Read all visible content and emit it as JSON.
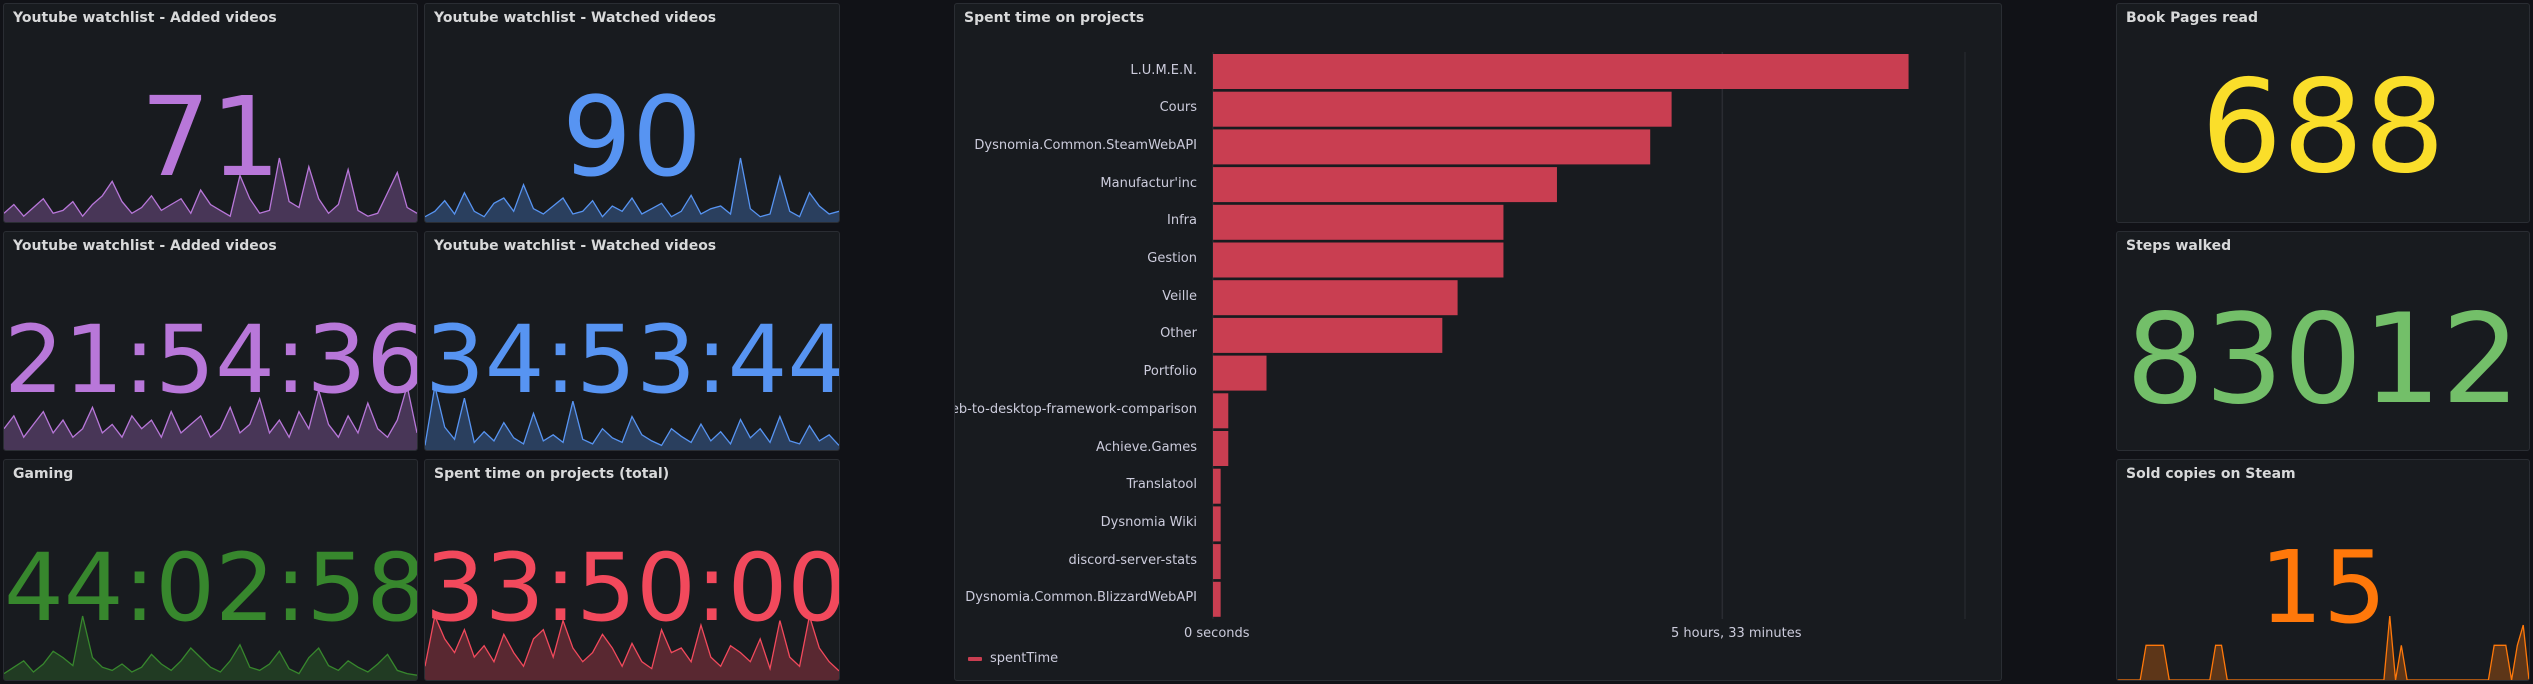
{
  "panels": {
    "yt_added_count": {
      "title": "Youtube watchlist - Added videos",
      "value": "71",
      "color": "#b877d9",
      "spark": [
        3,
        6,
        2,
        5,
        8,
        3,
        4,
        7,
        2,
        6,
        9,
        14,
        7,
        3,
        5,
        9,
        4,
        6,
        8,
        3,
        11,
        6,
        4,
        2,
        16,
        8,
        3,
        4,
        22,
        7,
        5,
        19,
        8,
        3,
        6,
        18,
        4,
        2,
        3,
        10,
        17,
        5,
        3
      ]
    },
    "yt_watched_count": {
      "title": "Youtube watchlist - Watched videos",
      "value": "90",
      "color": "#5794f2",
      "spark": [
        2,
        4,
        8,
        3,
        11,
        4,
        2,
        7,
        9,
        4,
        14,
        5,
        3,
        6,
        9,
        3,
        4,
        8,
        2,
        6,
        4,
        9,
        3,
        5,
        7,
        2,
        4,
        10,
        3,
        5,
        6,
        3,
        24,
        5,
        2,
        3,
        17,
        4,
        2,
        11,
        6,
        3,
        4
      ]
    },
    "yt_added_time": {
      "title": "Youtube watchlist - Added videos",
      "value": "21:54:36",
      "color": "#b877d9",
      "spark": [
        5,
        8,
        3,
        6,
        9,
        4,
        7,
        3,
        5,
        10,
        4,
        6,
        3,
        8,
        5,
        7,
        3,
        9,
        4,
        6,
        8,
        3,
        5,
        10,
        4,
        6,
        12,
        4,
        7,
        3,
        9,
        5,
        14,
        6,
        3,
        8,
        4,
        11,
        5,
        3,
        7,
        15,
        4
      ]
    },
    "yt_watched_time": {
      "title": "Youtube watchlist - Watched videos",
      "value": "34:53:44",
      "color": "#5794f2",
      "spark": [
        3,
        42,
        15,
        7,
        34,
        5,
        12,
        6,
        18,
        8,
        4,
        24,
        6,
        10,
        5,
        32,
        7,
        4,
        14,
        8,
        5,
        22,
        10,
        6,
        3,
        14,
        9,
        5,
        17,
        6,
        12,
        4,
        20,
        8,
        14,
        5,
        22,
        6,
        4,
        16,
        6,
        10,
        3
      ]
    },
    "gaming": {
      "title": "Gaming",
      "value": "44:02:58",
      "color": "#37872d",
      "spark": [
        4,
        8,
        12,
        5,
        10,
        18,
        14,
        9,
        40,
        14,
        8,
        6,
        10,
        5,
        8,
        16,
        10,
        6,
        12,
        20,
        14,
        8,
        5,
        12,
        22,
        8,
        6,
        10,
        18,
        7,
        4,
        14,
        20,
        9,
        6,
        12,
        8,
        5,
        10,
        16,
        6,
        4,
        3
      ]
    },
    "projects_total": {
      "title": "Spent time on projects (total)",
      "value": "33:50:00",
      "color": "#f2495c",
      "spark": [
        6,
        28,
        18,
        12,
        22,
        10,
        15,
        8,
        20,
        12,
        6,
        18,
        22,
        10,
        26,
        14,
        8,
        12,
        20,
        14,
        6,
        16,
        8,
        5,
        22,
        12,
        14,
        8,
        24,
        10,
        6,
        15,
        12,
        8,
        18,
        5,
        26,
        10,
        6,
        28,
        14,
        8,
        4
      ]
    },
    "pages": {
      "title": "Book Pages read",
      "value": "688",
      "color": "#fade2a"
    },
    "steps": {
      "title": "Steps walked",
      "value": "83012",
      "color": "#73bf69"
    },
    "steam": {
      "title": "Sold copies on Steam",
      "value": "15",
      "color": "#ff780a",
      "spark": [
        0,
        0,
        0,
        0,
        0,
        38,
        38,
        38,
        38,
        0,
        0,
        0,
        0,
        0,
        0,
        0,
        0,
        38,
        38,
        0,
        0,
        0,
        0,
        0,
        0,
        0,
        0,
        0,
        0,
        0,
        0,
        0,
        0,
        0,
        0,
        0,
        0,
        0,
        0,
        0,
        0,
        0,
        0,
        0,
        0,
        0,
        0,
        70,
        0,
        38,
        0,
        0,
        0,
        0,
        0,
        0,
        0,
        0,
        0,
        0,
        0,
        0,
        0,
        0,
        0,
        38,
        38,
        38,
        0,
        38,
        60,
        0
      ]
    }
  },
  "bar_panel": {
    "title": "Spent time on projects",
    "legend": "spentTime",
    "x_ticks": [
      "0 seconds",
      "5 hours, 33 minutes"
    ],
    "color": "#c93e51"
  },
  "chart_data": {
    "type": "bar",
    "orientation": "horizontal",
    "title": "Spent time on projects",
    "xlabel": "",
    "ylabel": "",
    "categories": [
      "L.U.M.E.N.",
      "Cours",
      "Dysnomia.Common.SteamWebAPI",
      "Manufactur'inc",
      "Infra",
      "Gestion",
      "Veille",
      "Other",
      "Portfolio",
      "web-to-desktop-framework-comparison",
      "Achieve.Games",
      "Translatool",
      "Dysnomia Wiki",
      "discord-server-stats",
      "Dysnomia.Common.BlizzardWebAPI"
    ],
    "values_minutes": [
      455,
      300,
      286,
      225,
      190,
      190,
      160,
      150,
      35,
      10,
      10,
      5,
      5,
      5,
      5
    ],
    "series": [
      {
        "name": "spentTime"
      }
    ],
    "xlim_minutes": [
      0,
      505
    ],
    "x_ticks_minutes": [
      0,
      333
    ],
    "legend_position": "bottom-left",
    "grid": true
  }
}
